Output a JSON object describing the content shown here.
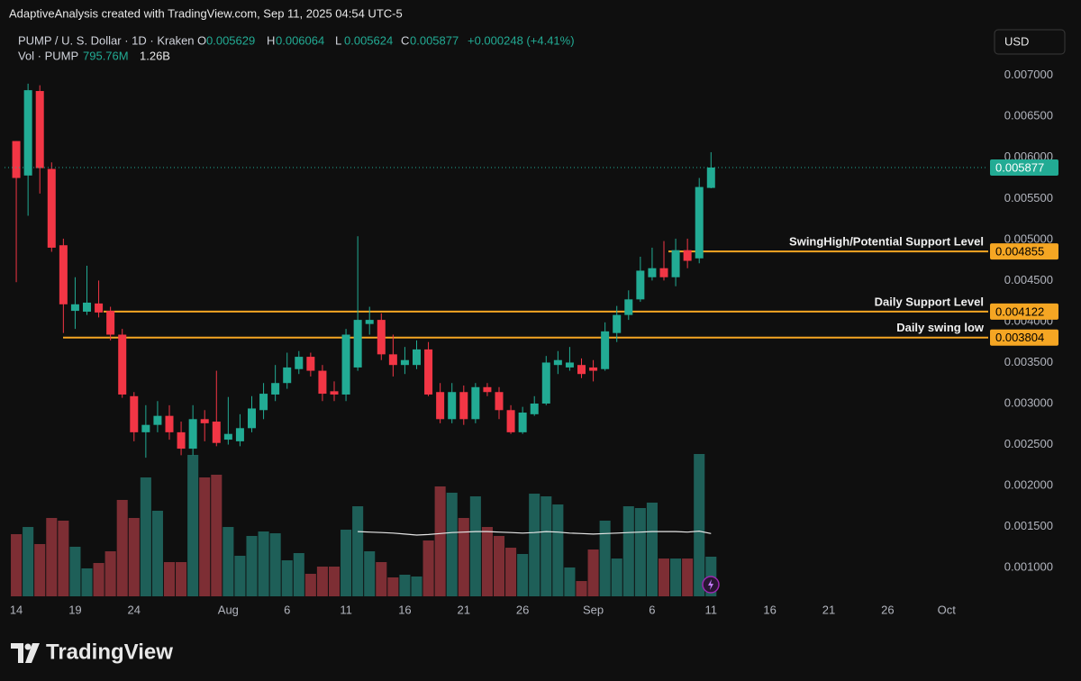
{
  "header": {
    "author": "AdaptiveAnalysis created with TradingView.com, Sep 11, 2025 04:54 UTC-5",
    "currency": "USD",
    "logo": "TradingView"
  },
  "chart_data": {
    "type": "candlestick",
    "title": "PUMP / U. S. Dollar · 1D · Kraken",
    "ohlc_labels": [
      "O",
      "H",
      "L",
      "C"
    ],
    "change": "+0.000248 (+4.41%)",
    "x": [
      "2025-07-14",
      "2025-07-15",
      "2025-07-16",
      "2025-07-17",
      "2025-07-18",
      "2025-07-19",
      "2025-07-20",
      "2025-07-21",
      "2025-07-22",
      "2025-07-23",
      "2025-07-24",
      "2025-07-25",
      "2025-07-26",
      "2025-07-27",
      "2025-07-28",
      "2025-07-29",
      "2025-07-30",
      "2025-07-31",
      "2025-08-01",
      "2025-08-02",
      "2025-08-03",
      "2025-08-04",
      "2025-08-05",
      "2025-08-06",
      "2025-08-07",
      "2025-08-08",
      "2025-08-09",
      "2025-08-10",
      "2025-08-11",
      "2025-08-12",
      "2025-08-13",
      "2025-08-14",
      "2025-08-15",
      "2025-08-16",
      "2025-08-17",
      "2025-08-18",
      "2025-08-19",
      "2025-08-20",
      "2025-08-21",
      "2025-08-22",
      "2025-08-23",
      "2025-08-24",
      "2025-08-25",
      "2025-08-26",
      "2025-08-27",
      "2025-08-28",
      "2025-08-29",
      "2025-08-30",
      "2025-08-31",
      "2025-09-01",
      "2025-09-02",
      "2025-09-03",
      "2025-09-04",
      "2025-09-05",
      "2025-09-06",
      "2025-09-07",
      "2025-09-08",
      "2025-09-09",
      "2025-09-10",
      "2025-09-11"
    ],
    "open": [
      0.0062,
      0.00578,
      0.00681,
      0.00586,
      0.00493,
      0.00413,
      0.00412,
      0.00422,
      0.00413,
      0.00384,
      0.00309,
      0.00265,
      0.00274,
      0.00285,
      0.00265,
      0.00245,
      0.00281,
      0.00278,
      0.00256,
      0.00254,
      0.0027,
      0.00292,
      0.00311,
      0.00325,
      0.00342,
      0.00357,
      0.0034,
      0.00315,
      0.00311,
      0.00344,
      0.00397,
      0.00402,
      0.0036,
      0.00347,
      0.00347,
      0.00366,
      0.00314,
      0.00281,
      0.00314,
      0.00281,
      0.0032,
      0.00314,
      0.00292,
      0.00265,
      0.00287,
      0.003,
      0.00347,
      0.00344,
      0.00347,
      0.00344,
      0.00342,
      0.00386,
      0.00408,
      0.00427,
      0.00454,
      0.00465,
      0.00454,
      0.00487,
      0.00477,
      0.005629
    ],
    "high": [
      0.0062,
      0.0069,
      0.00688,
      0.00594,
      0.00501,
      0.00454,
      0.00468,
      0.0045,
      0.00418,
      0.00391,
      0.00314,
      0.00298,
      0.00303,
      0.00298,
      0.00278,
      0.00298,
      0.00292,
      0.0034,
      0.00308,
      0.00287,
      0.00309,
      0.00325,
      0.00347,
      0.00362,
      0.00364,
      0.00362,
      0.00347,
      0.00327,
      0.00391,
      0.00504,
      0.00418,
      0.0041,
      0.00384,
      0.00369,
      0.00377,
      0.00375,
      0.00325,
      0.00325,
      0.00322,
      0.00325,
      0.00325,
      0.0032,
      0.00298,
      0.00296,
      0.00309,
      0.00358,
      0.00364,
      0.00369,
      0.00355,
      0.00353,
      0.00399,
      0.00419,
      0.00438,
      0.00479,
      0.0049,
      0.00498,
      0.00501,
      0.00501,
      0.00575,
      0.006064
    ],
    "low": [
      0.00448,
      0.00529,
      0.00556,
      0.00485,
      0.00386,
      0.00391,
      0.00408,
      0.00405,
      0.00377,
      0.00307,
      0.00254,
      0.00234,
      0.00265,
      0.00256,
      0.00237,
      0.00237,
      0.00254,
      0.00248,
      0.0025,
      0.00248,
      0.00265,
      0.00281,
      0.00303,
      0.00318,
      0.00336,
      0.00333,
      0.00303,
      0.00303,
      0.00303,
      0.0034,
      0.00384,
      0.00353,
      0.00333,
      0.00336,
      0.00342,
      0.00309,
      0.00276,
      0.00276,
      0.00274,
      0.00276,
      0.00309,
      0.00281,
      0.00263,
      0.00263,
      0.00285,
      0.00298,
      0.00336,
      0.0034,
      0.00331,
      0.00327,
      0.0034,
      0.00375,
      0.00402,
      0.00424,
      0.0045,
      0.0045,
      0.00443,
      0.00465,
      0.00471,
      0.005624
    ],
    "close": [
      0.00575,
      0.00682,
      0.00587,
      0.0049,
      0.00421,
      0.00421,
      0.00423,
      0.00411,
      0.00384,
      0.00311,
      0.00265,
      0.00274,
      0.00285,
      0.00265,
      0.00245,
      0.00281,
      0.00276,
      0.00252,
      0.00263,
      0.0027,
      0.00294,
      0.00312,
      0.00325,
      0.00344,
      0.00357,
      0.0034,
      0.00312,
      0.00311,
      0.00384,
      0.00402,
      0.00402,
      0.0036,
      0.00347,
      0.00353,
      0.00366,
      0.00311,
      0.00281,
      0.00314,
      0.00281,
      0.0032,
      0.00314,
      0.00292,
      0.00265,
      0.00289,
      0.003,
      0.0035,
      0.00353,
      0.0035,
      0.00336,
      0.0034,
      0.00388,
      0.00408,
      0.00427,
      0.00462,
      0.00465,
      0.00454,
      0.00487,
      0.00474,
      0.00564,
      0.005877
    ],
    "up_color": "#22ab94",
    "down_color": "#f23645",
    "volume": {
      "name": "Vol · PUMP",
      "values": [
        1248000000,
        1392000000,
        1049000000,
        1573000000,
        1519000000,
        995000000,
        561000000,
        669000000,
        904000000,
        1935000000,
        1573000000,
        2387000000,
        1718000000,
        687000000,
        687000000,
        2839000000,
        2387000000,
        2441000000,
        1392000000,
        814000000,
        1212000000,
        1302000000,
        1266000000,
        723000000,
        868000000,
        452000000,
        597000000,
        597000000,
        1338000000,
        1808000000,
        904000000,
        687000000,
        380000000,
        434000000,
        398000000,
        1121000000,
        2206000000,
        2080000000,
        1573000000,
        2007000000,
        1392000000,
        1212000000,
        976000000,
        850000000,
        2061000000,
        2007000000,
        1844000000,
        579000000,
        307000000,
        940000000,
        1519000000,
        759000000,
        1808000000,
        1772000000,
        1881000000,
        759000000,
        759000000,
        759000000,
        2857000000,
        795760000
      ],
      "ma": [
        null,
        null,
        null,
        null,
        null,
        null,
        null,
        null,
        null,
        null,
        null,
        null,
        null,
        null,
        null,
        null,
        null,
        null,
        null,
        null,
        null,
        null,
        null,
        null,
        null,
        null,
        null,
        null,
        null,
        1300000000,
        1290000000,
        1280000000,
        1270000000,
        1250000000,
        1230000000,
        1240000000,
        1260000000,
        1280000000,
        1290000000,
        1300000000,
        1300000000,
        1290000000,
        1280000000,
        1270000000,
        1280000000,
        1300000000,
        1290000000,
        1270000000,
        1260000000,
        1250000000,
        1260000000,
        1270000000,
        1280000000,
        1290000000,
        1300000000,
        1300000000,
        1300000000,
        1290000000,
        1310000000,
        1260000000
      ],
      "last_label": {
        "value": 795760000,
        "label": "795.76M"
      },
      "ma_last_label": {
        "value": 1260000000,
        "label": "1.26B"
      },
      "up_color": "#1e5f58",
      "down_color": "#7d2e34",
      "ma_color": "#e6e6e6"
    },
    "levels": [
      {
        "name": "SwingHigh/Potential Support Level",
        "value": 0.004855,
        "label": "0.004855"
      },
      {
        "name": "Daily Support Level",
        "value": 0.004122,
        "label": "0.004122"
      },
      {
        "name": "Daily swing low",
        "value": 0.003804,
        "label": "0.003804"
      }
    ],
    "level_color": "#f5a623",
    "xlim": [
      "2025-07-13",
      "2025-10-05"
    ],
    "xticks": [
      {
        "value": "2025-07-14",
        "label": "14"
      },
      {
        "value": "2025-07-19",
        "label": "19"
      },
      {
        "value": "2025-07-24",
        "label": "24"
      },
      {
        "value": "2025-08-01",
        "label": "Aug"
      },
      {
        "value": "2025-08-06",
        "label": "6"
      },
      {
        "value": "2025-08-11",
        "label": "11"
      },
      {
        "value": "2025-08-16",
        "label": "16"
      },
      {
        "value": "2025-08-21",
        "label": "21"
      },
      {
        "value": "2025-08-26",
        "label": "26"
      },
      {
        "value": "2025-09-01",
        "label": "Sep"
      },
      {
        "value": "2025-09-06",
        "label": "6"
      },
      {
        "value": "2025-09-11",
        "label": "11"
      },
      {
        "value": "2025-09-16",
        "label": "16"
      },
      {
        "value": "2025-09-21",
        "label": "21"
      },
      {
        "value": "2025-09-26",
        "label": "26"
      },
      {
        "value": "2025-10-01",
        "label": "Oct"
      }
    ],
    "ylim": [
      0.00065,
      0.00759
    ],
    "yticks": [
      {
        "value": 0.001,
        "label": "0.001000"
      },
      {
        "value": 0.0015,
        "label": "0.001500"
      },
      {
        "value": 0.002,
        "label": "0.002000"
      },
      {
        "value": 0.0025,
        "label": "0.002500"
      },
      {
        "value": 0.003,
        "label": "0.003000"
      },
      {
        "value": 0.0035,
        "label": "0.003500"
      },
      {
        "value": 0.004,
        "label": "0.004000"
      },
      {
        "value": 0.0045,
        "label": "0.004500"
      },
      {
        "value": 0.005,
        "label": "0.005000"
      },
      {
        "value": 0.0055,
        "label": "0.005500"
      },
      {
        "value": 0.006,
        "label": "0.006000"
      },
      {
        "value": 0.0065,
        "label": "0.006500"
      },
      {
        "value": 0.007,
        "label": "0.007000"
      }
    ],
    "grid": false
  }
}
